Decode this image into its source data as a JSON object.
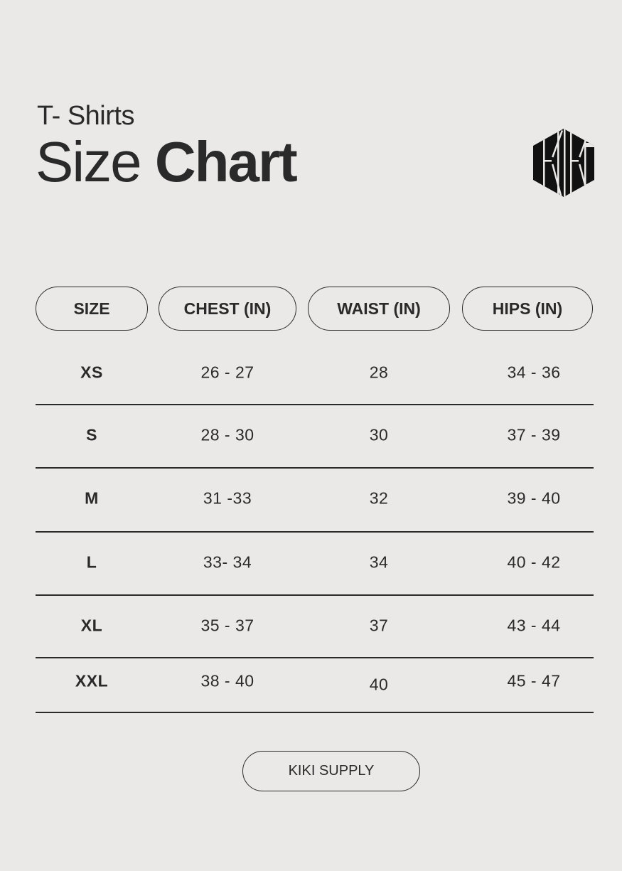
{
  "header": {
    "subtitle": "T- Shirts",
    "title_light": "Size",
    "title_bold": "Chart",
    "logo_text": "KIKI"
  },
  "table": {
    "columns": [
      "SIZE",
      "CHEST (IN)",
      "WAIST (IN)",
      "HIPS (IN)"
    ],
    "rows": [
      [
        "XS",
        "26 - 27",
        "28",
        "34 - 36"
      ],
      [
        "S",
        "28 - 30",
        "30",
        "37 - 39"
      ],
      [
        "M",
        "31 -33",
        "32",
        "39 - 40"
      ],
      [
        "L",
        "33- 34",
        "34",
        "40 - 42"
      ],
      [
        "XL",
        "35 - 37",
        "37",
        "43 - 44"
      ],
      [
        "XXL",
        "38 - 40",
        "40",
        "45 - 47"
      ]
    ]
  },
  "footer": {
    "brand_label": "KIKI SUPPLY"
  },
  "colors": {
    "background": "#ebe9e8",
    "text": "#2a2a2a"
  }
}
